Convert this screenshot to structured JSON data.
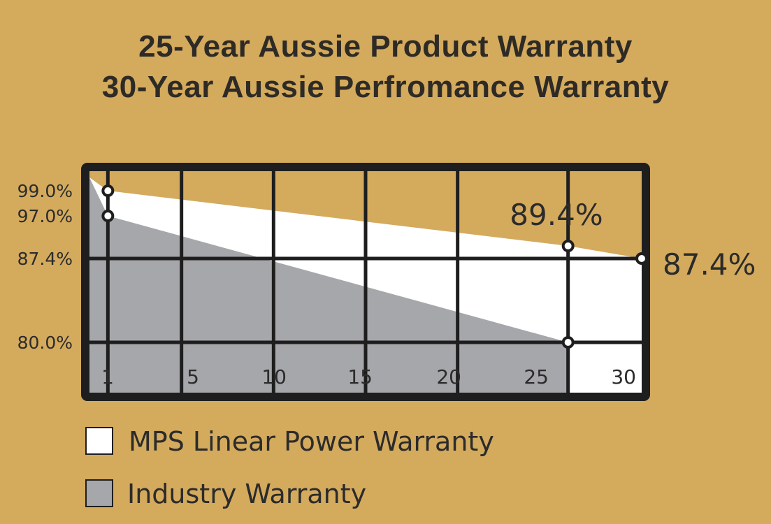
{
  "title_line1": "25-Year Aussie Product Warranty",
  "title_line2": "30-Year Aussie Perfromance Warranty",
  "chart_data": {
    "type": "area",
    "y_tick_labels": [
      "99.0%",
      "97.0%",
      "87.4%",
      "80.0%"
    ],
    "x_tick_labels": [
      "1",
      "5",
      "10",
      "15",
      "20",
      "25",
      "30"
    ],
    "annotations": [
      "89.4%",
      "87.4%"
    ],
    "series": [
      {
        "name": "MPS Linear Power Warranty",
        "color": "#ffffff",
        "points": [
          [
            0,
            100.0
          ],
          [
            1,
            99.0
          ],
          [
            26,
            89.4
          ],
          [
            30,
            87.4
          ]
        ]
      },
      {
        "name": "Industry Warranty",
        "color": "#a6a7aa",
        "points": [
          [
            0,
            100.0
          ],
          [
            1,
            97.0
          ],
          [
            26,
            80.0
          ]
        ]
      }
    ],
    "marked_points": [
      {
        "x": 1,
        "y": 99.0
      },
      {
        "x": 1,
        "y": 97.0
      },
      {
        "x": 26,
        "y": 89.4
      },
      {
        "x": 30,
        "y": 87.4
      },
      {
        "x": 26,
        "y": 80.0
      }
    ],
    "grid": true,
    "legend_position": "bottom-left"
  },
  "legend": [
    {
      "label": "MPS Linear Power Warranty",
      "color": "#ffffff"
    },
    {
      "label": "Industry Warranty",
      "color": "#a6a7aa"
    }
  ],
  "colors": {
    "background": "#d4aa5d",
    "frame": "#1e1e1e",
    "white_area": "#ffffff",
    "grey_area": "#a6a7aa"
  }
}
